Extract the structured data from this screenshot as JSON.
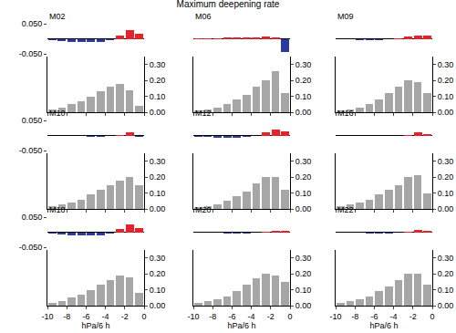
{
  "chart_data": {
    "type": "bar",
    "title": "Maximum deepening rate",
    "xlabel": "hPa/6 h",
    "xlim": [
      -10,
      0
    ],
    "xticks": [
      -10,
      -8,
      -6,
      -4,
      -2,
      0
    ],
    "bins": [
      -10,
      -9,
      -8,
      -7,
      -6,
      -5,
      -4,
      -3,
      -2,
      -1,
      0
    ],
    "ylim": [
      -0.05,
      0.05
    ],
    "yticks": [
      {
        "value": -0.05,
        "label": "-0.050"
      },
      {
        "value": 0.05,
        "label": "0.050"
      }
    ],
    "y2lim": [
      0,
      0.35
    ],
    "y2ticks": [
      {
        "value": 0,
        "label": "0.00"
      },
      {
        "value": 0.1,
        "label": "0.10"
      },
      {
        "value": 0.2,
        "label": "0.20"
      },
      {
        "value": 0.3,
        "label": "0.30"
      }
    ],
    "panels": [
      {
        "title": "M02",
        "difference": {
          "values": [
            -0.006,
            -0.008,
            -0.01,
            -0.012,
            -0.012,
            -0.01,
            -0.006,
            0.012,
            0.028,
            0.018
          ],
          "colors": [
            "#2b3a9e",
            "#2b3a9e",
            "#2b3a9e",
            "#2b3a9e",
            "#2b3a9e",
            "#2b3a9e",
            "#2b3a9e",
            "#e8202a",
            "#e8202a",
            "#e8202a"
          ]
        },
        "histogram": {
          "counts": [
            0.02,
            0.03,
            0.05,
            0.07,
            0.1,
            0.13,
            0.16,
            0.18,
            0.14,
            0.04
          ],
          "color": "#a6a6a6",
          "axis": "y2"
        }
      },
      {
        "title": "M06",
        "difference": {
          "values": [
            0.002,
            0.002,
            0.003,
            0.004,
            0.005,
            0.006,
            0.006,
            0.008,
            0.005,
            -0.045
          ],
          "colors": [
            "#e8202a",
            "#e8202a",
            "#e8202a",
            "#e8202a",
            "#e8202a",
            "#e8202a",
            "#e8202a",
            "#e8202a",
            "#e8202a",
            "#2b3a9e"
          ]
        },
        "histogram": {
          "counts": [
            0.01,
            0.02,
            0.03,
            0.05,
            0.08,
            0.11,
            0.16,
            0.2,
            0.26,
            0.12
          ],
          "color": "#a6a6a6",
          "axis": "y2"
        }
      },
      {
        "title": "M09",
        "difference": {
          "values": [
            -0.003,
            -0.003,
            -0.004,
            -0.004,
            -0.004,
            -0.003,
            0.003,
            0.008,
            0.012,
            0.01
          ],
          "colors": [
            "#2b3a9e",
            "#2b3a9e",
            "#2b3a9e",
            "#2b3a9e",
            "#2b3a9e",
            "#2b3a9e",
            "#e8202a",
            "#e8202a",
            "#e8202a",
            "#e8202a"
          ]
        },
        "histogram": {
          "counts": [
            0.01,
            0.02,
            0.03,
            0.05,
            0.08,
            0.12,
            0.16,
            0.2,
            0.19,
            0.12
          ],
          "color": "#a6a6a6",
          "axis": "y2"
        }
      },
      {
        "title": "M10",
        "difference": {
          "values": [
            -0.002,
            -0.003,
            -0.003,
            -0.003,
            -0.004,
            -0.004,
            -0.002,
            0.003,
            0.012,
            -0.004
          ],
          "colors": [
            "#2b3a9e",
            "#2b3a9e",
            "#2b3a9e",
            "#2b3a9e",
            "#2b3a9e",
            "#2b3a9e",
            "#2b3a9e",
            "#e8202a",
            "#e8202a",
            "#2b3a9e"
          ]
        },
        "histogram": {
          "counts": [
            0.02,
            0.03,
            0.04,
            0.06,
            0.09,
            0.12,
            0.15,
            0.18,
            0.2,
            0.15
          ],
          "color": "#a6a6a6",
          "axis": "y2"
        }
      },
      {
        "title": "M12",
        "difference": {
          "values": [
            -0.005,
            -0.006,
            -0.007,
            -0.008,
            -0.008,
            -0.006,
            -0.003,
            0.012,
            0.02,
            0.014
          ],
          "colors": [
            "#2b3a9e",
            "#2b3a9e",
            "#2b3a9e",
            "#2b3a9e",
            "#2b3a9e",
            "#2b3a9e",
            "#2b3a9e",
            "#e8202a",
            "#e8202a",
            "#e8202a"
          ]
        },
        "histogram": {
          "counts": [
            0.01,
            0.02,
            0.03,
            0.05,
            0.08,
            0.11,
            0.16,
            0.2,
            0.2,
            0.12
          ],
          "color": "#a6a6a6",
          "axis": "y2"
        }
      },
      {
        "title": "M16",
        "difference": {
          "values": [
            -0.002,
            -0.002,
            -0.003,
            -0.003,
            -0.003,
            -0.003,
            -0.002,
            0.003,
            0.01,
            0.004
          ],
          "colors": [
            "#2b3a9e",
            "#2b3a9e",
            "#2b3a9e",
            "#2b3a9e",
            "#2b3a9e",
            "#2b3a9e",
            "#2b3a9e",
            "#e8202a",
            "#e8202a",
            "#e8202a"
          ]
        },
        "histogram": {
          "counts": [
            0.02,
            0.03,
            0.04,
            0.06,
            0.09,
            0.12,
            0.15,
            0.2,
            0.21,
            0.1
          ],
          "color": "#a6a6a6",
          "axis": "y2"
        }
      },
      {
        "title": "M18",
        "difference": {
          "values": [
            -0.006,
            -0.008,
            -0.01,
            -0.01,
            -0.012,
            -0.01,
            -0.006,
            0.01,
            0.025,
            0.014
          ],
          "colors": [
            "#2b3a9e",
            "#2b3a9e",
            "#2b3a9e",
            "#2b3a9e",
            "#2b3a9e",
            "#2b3a9e",
            "#2b3a9e",
            "#e8202a",
            "#e8202a",
            "#e8202a"
          ]
        },
        "histogram": {
          "counts": [
            0.02,
            0.03,
            0.05,
            0.07,
            0.1,
            0.13,
            0.16,
            0.19,
            0.18,
            0.08
          ],
          "color": "#a6a6a6",
          "axis": "y2"
        }
      },
      {
        "title": "M20",
        "difference": {
          "values": [
            -0.002,
            -0.003,
            -0.003,
            -0.004,
            -0.004,
            -0.004,
            -0.002,
            0.002,
            0.006,
            0.004
          ],
          "colors": [
            "#2b3a9e",
            "#2b3a9e",
            "#2b3a9e",
            "#2b3a9e",
            "#2b3a9e",
            "#2b3a9e",
            "#2b3a9e",
            "#e8202a",
            "#e8202a",
            "#e8202a"
          ]
        },
        "histogram": {
          "counts": [
            0.02,
            0.03,
            0.04,
            0.06,
            0.09,
            0.13,
            0.17,
            0.2,
            0.19,
            0.15
          ],
          "color": "#a6a6a6",
          "axis": "y2"
        }
      },
      {
        "title": "M22",
        "difference": {
          "values": [
            -0.002,
            -0.003,
            -0.003,
            -0.004,
            -0.004,
            -0.004,
            -0.003,
            0.003,
            0.008,
            0.006
          ],
          "colors": [
            "#2b3a9e",
            "#2b3a9e",
            "#2b3a9e",
            "#2b3a9e",
            "#2b3a9e",
            "#2b3a9e",
            "#2b3a9e",
            "#e8202a",
            "#e8202a",
            "#e8202a"
          ]
        },
        "histogram": {
          "counts": [
            0.02,
            0.03,
            0.04,
            0.06,
            0.09,
            0.12,
            0.16,
            0.2,
            0.2,
            0.13
          ],
          "color": "#a6a6a6",
          "axis": "y2"
        }
      }
    ]
  }
}
